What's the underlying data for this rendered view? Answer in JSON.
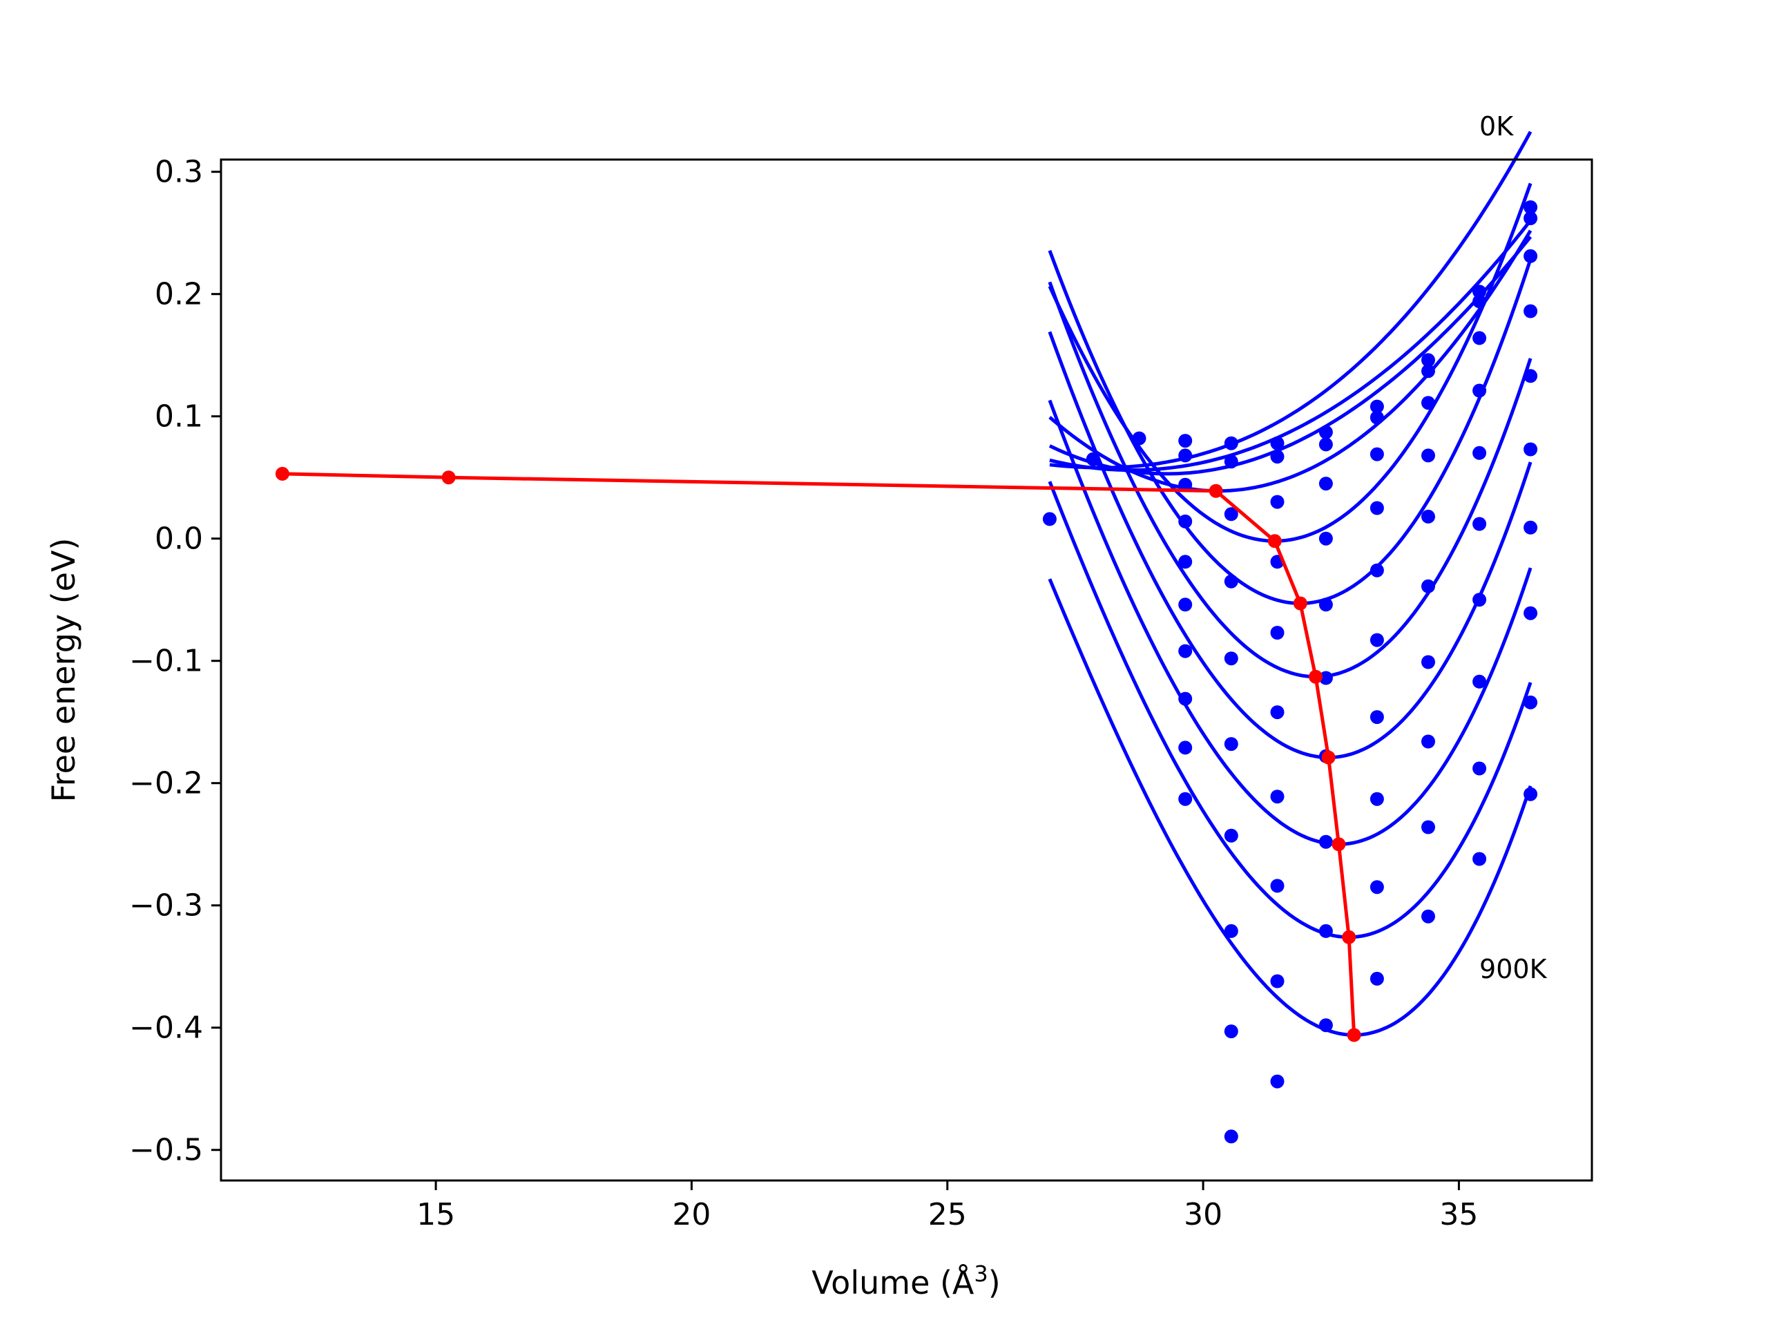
{
  "chart_data": {
    "type": "line",
    "title": "",
    "xlabel": "Volume (Å",
    "xlabel_sup": "3",
    "xlabel_close": ")",
    "ylabel": "Free energy (eV)",
    "xlim": [
      10.8,
      37.6
    ],
    "ylim": [
      -0.525,
      0.31
    ],
    "xticks": [
      15,
      20,
      25,
      30,
      35
    ],
    "yticks": [
      0.3,
      0.2,
      0.1,
      0.0,
      -0.1,
      -0.2,
      -0.3,
      -0.4,
      -0.5
    ],
    "xtick_labels": [
      "15",
      "20",
      "25",
      "30",
      "35"
    ],
    "ytick_labels": [
      "0.3",
      "0.2",
      "0.1",
      "0.0",
      "−0.1",
      "−0.2",
      "−0.3",
      "−0.4",
      "−0.5"
    ],
    "grid": false,
    "annotations": [
      {
        "text": "0K",
        "x": 35.4,
        "y": 0.337
      },
      {
        "text": "900K",
        "x": 35.4,
        "y": -0.352
      }
    ],
    "colors": {
      "fit_curves": "#0000ff",
      "data_points": "#0000ff",
      "minimum_path": "#ff0000"
    },
    "fit_x_range": [
      27.0,
      36.4
    ],
    "fit_curves": [
      {
        "v0": 28.0,
        "e0": 0.058,
        "a": 0.00255,
        "b": 0.00016
      },
      {
        "v0": 28.6,
        "e0": 0.056,
        "a": 0.0032,
        "b": 2e-05
      },
      {
        "v0": 29.3,
        "e0": 0.053,
        "a": 0.0042,
        "b": -5e-05
      },
      {
        "v0": 30.3,
        "e0": 0.039,
        "a": 0.0056,
        "b": 2e-05
      },
      {
        "v0": 31.4,
        "e0": -0.002,
        "a": 0.0112,
        "b": 0.0001
      },
      {
        "v0": 31.9,
        "e0": -0.053,
        "a": 0.013,
        "b": 0.0002
      },
      {
        "v0": 32.2,
        "e0": -0.113,
        "a": 0.0135,
        "b": 0.0003
      },
      {
        "v0": 32.45,
        "e0": -0.179,
        "a": 0.0139,
        "b": 0.0004
      },
      {
        "v0": 32.65,
        "e0": -0.25,
        "a": 0.0142,
        "b": 0.0005
      },
      {
        "v0": 32.85,
        "e0": -0.326,
        "a": 0.0144,
        "b": 0.0006
      },
      {
        "v0": 32.95,
        "e0": -0.406,
        "a": 0.0147,
        "b": 0.0007
      }
    ],
    "scatter_points": [
      [
        27.0,
        0.016
      ],
      [
        27.85,
        0.065
      ],
      [
        28.75,
        0.082
      ],
      [
        29.65,
        0.08
      ],
      [
        29.65,
        0.068
      ],
      [
        29.65,
        0.044
      ],
      [
        29.65,
        0.014
      ],
      [
        29.65,
        -0.019
      ],
      [
        29.65,
        -0.054
      ],
      [
        29.65,
        -0.092
      ],
      [
        29.65,
        -0.131
      ],
      [
        29.65,
        -0.171
      ],
      [
        29.65,
        -0.213
      ],
      [
        30.55,
        0.078
      ],
      [
        30.55,
        0.063
      ],
      [
        30.55,
        0.02
      ],
      [
        30.55,
        -0.035
      ],
      [
        30.55,
        -0.098
      ],
      [
        30.55,
        -0.168
      ],
      [
        30.55,
        -0.243
      ],
      [
        30.55,
        -0.321
      ],
      [
        30.55,
        -0.403
      ],
      [
        30.55,
        -0.489
      ],
      [
        31.45,
        0.078
      ],
      [
        31.45,
        0.067
      ],
      [
        31.45,
        0.03
      ],
      [
        31.45,
        -0.019
      ],
      [
        31.45,
        -0.077
      ],
      [
        31.45,
        -0.142
      ],
      [
        31.45,
        -0.211
      ],
      [
        31.45,
        -0.284
      ],
      [
        31.45,
        -0.362
      ],
      [
        31.45,
        -0.444
      ],
      [
        32.4,
        0.087
      ],
      [
        32.4,
        0.077
      ],
      [
        32.4,
        0.045
      ],
      [
        32.4,
        0.0
      ],
      [
        32.4,
        -0.054
      ],
      [
        32.4,
        -0.114
      ],
      [
        32.4,
        -0.178
      ],
      [
        32.4,
        -0.248
      ],
      [
        32.4,
        -0.321
      ],
      [
        32.4,
        -0.398
      ],
      [
        33.4,
        0.108
      ],
      [
        33.4,
        0.099
      ],
      [
        33.4,
        0.069
      ],
      [
        33.4,
        0.025
      ],
      [
        33.4,
        -0.026
      ],
      [
        33.4,
        -0.083
      ],
      [
        33.4,
        -0.146
      ],
      [
        33.4,
        -0.213
      ],
      [
        33.4,
        -0.285
      ],
      [
        33.4,
        -0.36
      ],
      [
        34.4,
        0.146
      ],
      [
        34.4,
        0.137
      ],
      [
        34.4,
        0.111
      ],
      [
        34.4,
        0.068
      ],
      [
        34.4,
        0.018
      ],
      [
        34.4,
        -0.039
      ],
      [
        34.4,
        -0.101
      ],
      [
        34.4,
        -0.166
      ],
      [
        34.4,
        -0.236
      ],
      [
        34.4,
        -0.309
      ],
      [
        35.4,
        0.202
      ],
      [
        35.4,
        0.194
      ],
      [
        35.4,
        0.164
      ],
      [
        35.4,
        0.121
      ],
      [
        35.4,
        0.07
      ],
      [
        35.4,
        0.012
      ],
      [
        35.4,
        -0.05
      ],
      [
        35.4,
        -0.117
      ],
      [
        35.4,
        -0.188
      ],
      [
        35.4,
        -0.262
      ],
      [
        36.4,
        0.271
      ],
      [
        36.4,
        0.262
      ],
      [
        36.4,
        0.231
      ],
      [
        36.4,
        0.186
      ],
      [
        36.4,
        0.133
      ],
      [
        36.4,
        0.073
      ],
      [
        36.4,
        0.009
      ],
      [
        36.4,
        -0.061
      ],
      [
        36.4,
        -0.134
      ],
      [
        36.4,
        -0.209
      ]
    ],
    "minimum_path": [
      [
        12.0,
        0.053
      ],
      [
        15.25,
        0.05
      ],
      [
        30.25,
        0.039
      ],
      [
        31.4,
        -0.002
      ],
      [
        31.9,
        -0.053
      ],
      [
        32.2,
        -0.113
      ],
      [
        32.45,
        -0.179
      ],
      [
        32.65,
        -0.25
      ],
      [
        32.85,
        -0.326
      ],
      [
        32.95,
        -0.406
      ]
    ]
  }
}
